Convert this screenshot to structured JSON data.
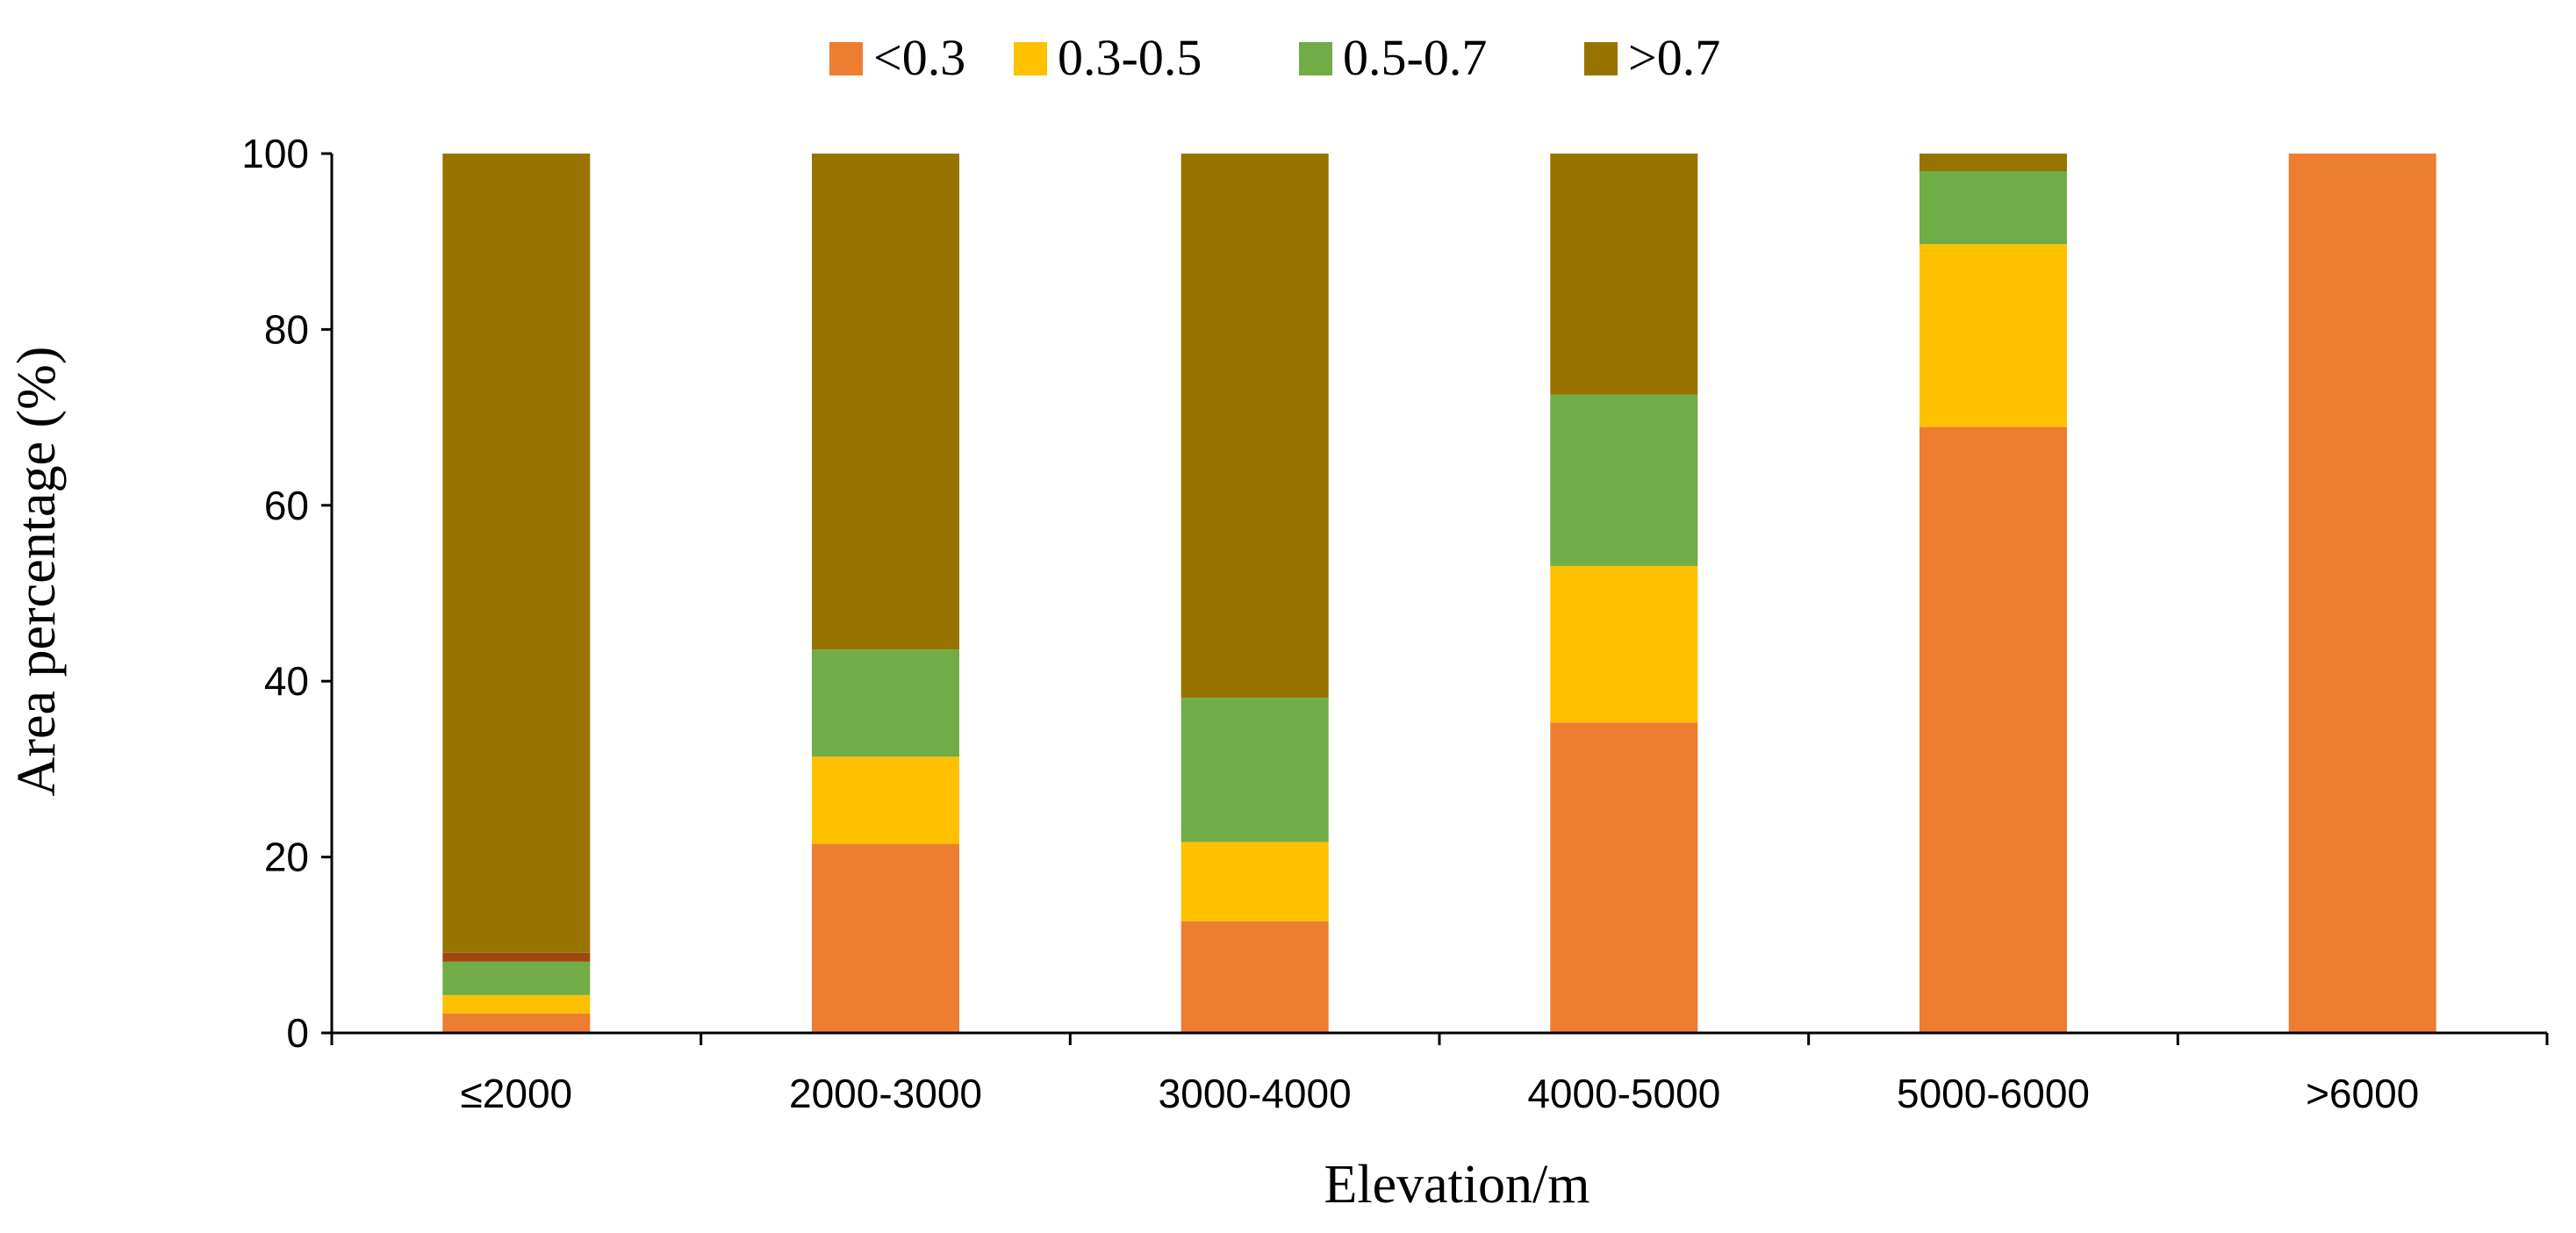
{
  "chart_data": {
    "type": "bar",
    "stacked": true,
    "title": "",
    "xlabel": "Elevation/m",
    "ylabel": "Area percentage (%)",
    "ylim": [
      0,
      100
    ],
    "yticks": [
      0,
      20,
      40,
      60,
      80,
      100
    ],
    "legend_position": "top",
    "categories": [
      "≤2000",
      "2000-3000",
      "3000-4000",
      "4000-5000",
      "5000-6000",
      ">6000"
    ],
    "series": [
      {
        "name": "<0.3",
        "color": "#ED7D31",
        "values": [
          2.2,
          21.5,
          12.7,
          35.3,
          68.9,
          100
        ]
      },
      {
        "name": "0.3-0.5",
        "color": "#FFC000",
        "values": [
          2.1,
          9.9,
          9.0,
          17.8,
          20.8,
          0
        ]
      },
      {
        "name": "0.5-0.7",
        "color": "#70AD47",
        "values": [
          3.8,
          12.2,
          16.4,
          19.5,
          8.3,
          0
        ]
      },
      {
        "name": "",
        "color": "#9E480E",
        "values": [
          1.0,
          0,
          0,
          0,
          0,
          0
        ]
      },
      {
        "name": ">0.7",
        "color": "#997300",
        "values": [
          90.9,
          56.4,
          61.9,
          27.4,
          2.0,
          0
        ]
      }
    ]
  }
}
